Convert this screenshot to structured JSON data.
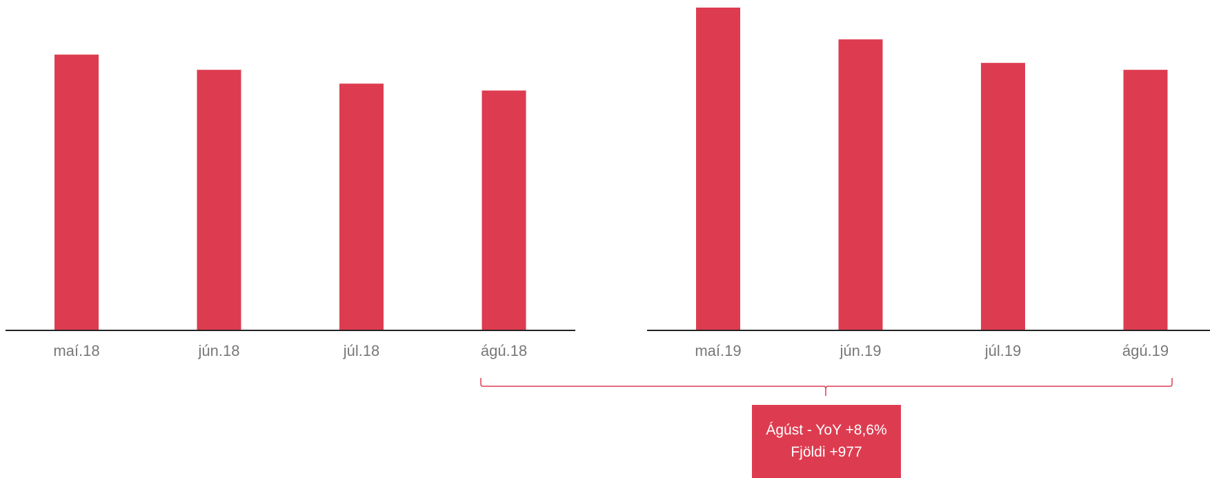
{
  "chart_data": [
    {
      "type": "bar",
      "categories": [
        "maí.18",
        "jún.18",
        "júl.18",
        "ágú.18"
      ],
      "values": [
        399,
        377,
        357,
        347
      ],
      "ylim": [
        0,
        467
      ],
      "color": "#dd3c50",
      "grid": false
    },
    {
      "type": "bar",
      "categories": [
        "maí.19",
        "jún.19",
        "júl.19",
        "ágú.19"
      ],
      "values": [
        467,
        421,
        387,
        377
      ],
      "ylim": [
        0,
        467
      ],
      "color": "#dd3c50",
      "grid": false
    }
  ],
  "annotation": {
    "line1": "Ágúst - YoY +8,6%",
    "line2": "Fjöldi +977",
    "background": "#dd3c50"
  }
}
